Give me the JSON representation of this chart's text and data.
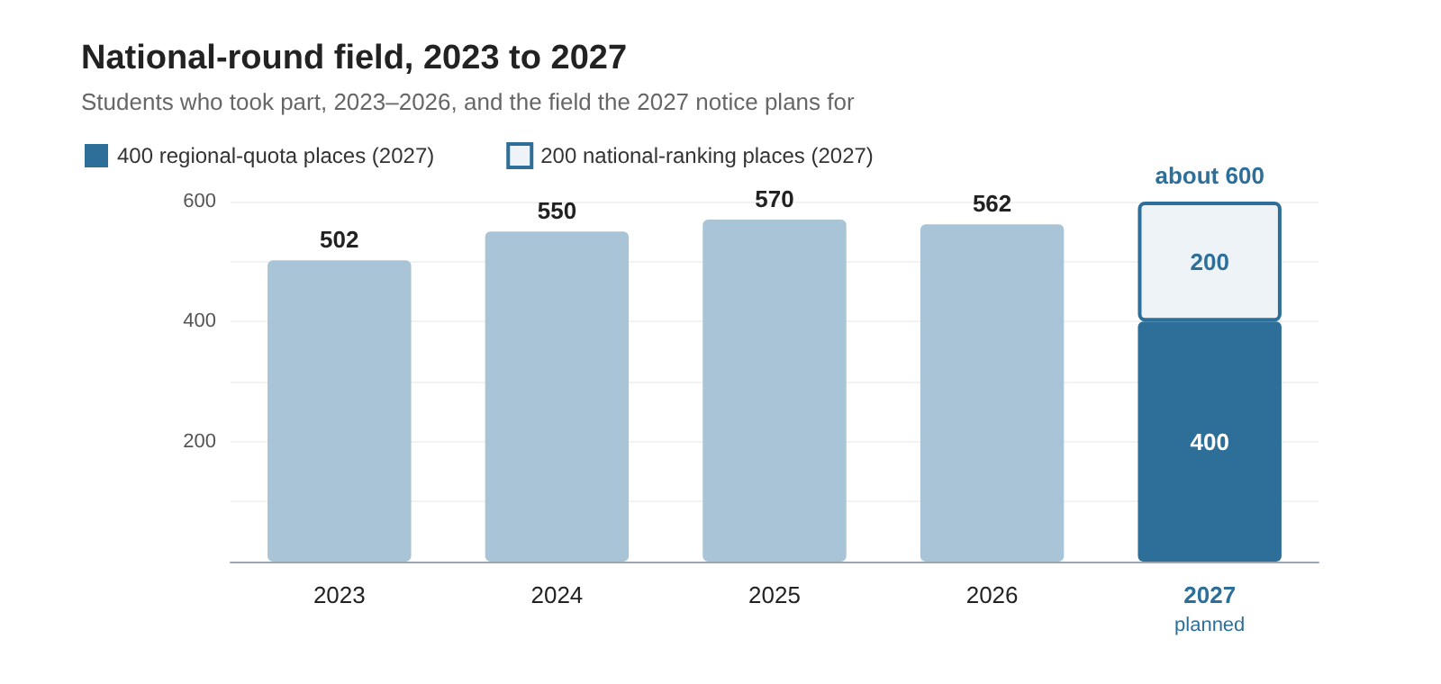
{
  "chart_data": {
    "type": "bar",
    "title": "National-round field, 2023 to 2027",
    "subtitle": "Students who took part, 2023–2026, and the field the 2027 notice plans for",
    "categories": [
      "2023",
      "2024",
      "2025",
      "2026",
      "2027"
    ],
    "series": [
      {
        "color": "#a9c4d6",
        "values": [
          502,
          550,
          570,
          562,
          null
        ]
      },
      {
        "name": "400 regional-quota places (2027)",
        "color": "#2e6f99",
        "values": [
          null,
          null,
          null,
          null,
          400
        ]
      },
      {
        "name": "200 national-ranking places (2027)",
        "color": "#eef3f7",
        "values": [
          null,
          null,
          null,
          null,
          200
        ]
      }
    ],
    "stacked": true,
    "totals": [
      null,
      null,
      null,
      null,
      "about 600"
    ],
    "data_labels": true,
    "ylim": [
      0,
      600
    ],
    "yticks": [
      200,
      400,
      600
    ],
    "grid": "y",
    "legend": "top left",
    "annotations": [
      "planned"
    ]
  }
}
